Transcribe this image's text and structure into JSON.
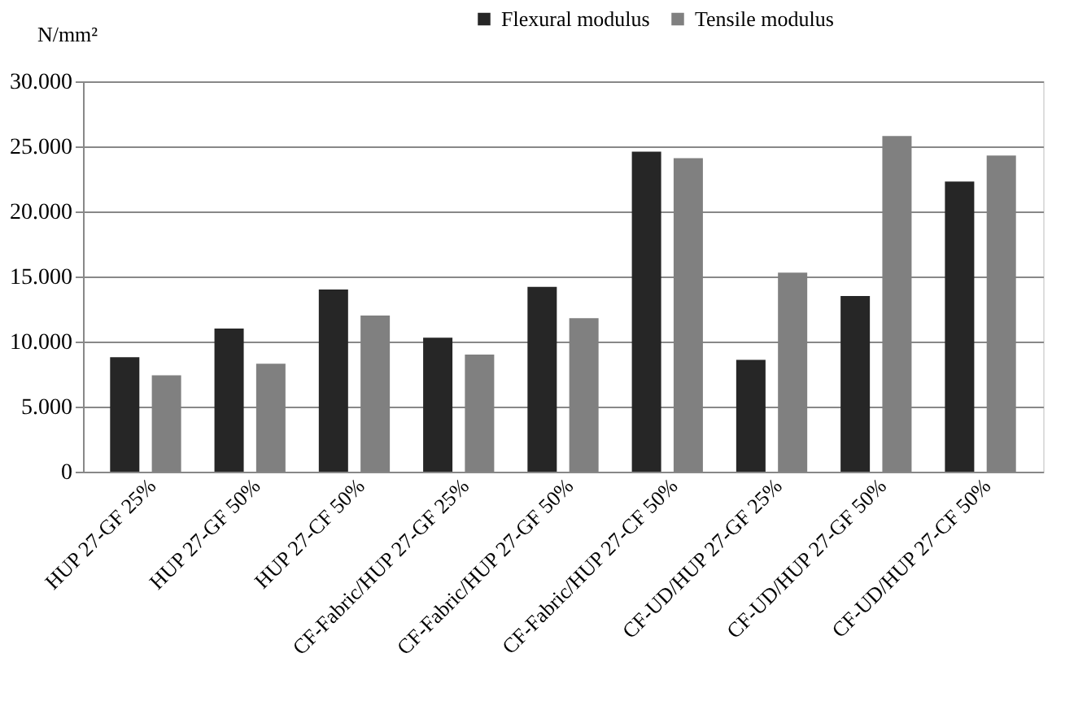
{
  "chart_data": {
    "type": "bar",
    "ylabel": "N/mm²",
    "categories": [
      "HUP 27-GF 25%",
      "HUP 27-GF 50%",
      "HUP 27-CF 50%",
      "CF-Fabric/HUP 27-GF 25%",
      "CF-Fabric/HUP 27-GF 50%",
      "CF-Fabric/HUP 27-CF 50%",
      "CF-UD/HUP 27-GF 25%",
      "CF-UD/HUP 27-GF 50%",
      "CF-UD/HUP 27-CF 50%"
    ],
    "series": [
      {
        "name": "Flexural modulus",
        "color": "#262626",
        "values": [
          8800,
          11000,
          14000,
          10300,
          14200,
          24600,
          8600,
          13500,
          22300
        ]
      },
      {
        "name": "Tensile modulus",
        "color": "#808080",
        "values": [
          7400,
          8300,
          12000,
          9000,
          11800,
          24100,
          15300,
          25800,
          24300
        ]
      }
    ],
    "ylim": [
      0,
      30000
    ],
    "yticks": [
      0,
      {
        "value": 5000,
        "label": "5.000"
      },
      {
        "value": 10000,
        "label": "10.000"
      },
      {
        "value": 15000,
        "label": "15.000"
      },
      {
        "value": 20000,
        "label": "20.000"
      },
      {
        "value": 25000,
        "label": "25.000"
      },
      {
        "value": 30000,
        "label": "30.000"
      }
    ],
    "grid": "y",
    "legend": "top"
  }
}
